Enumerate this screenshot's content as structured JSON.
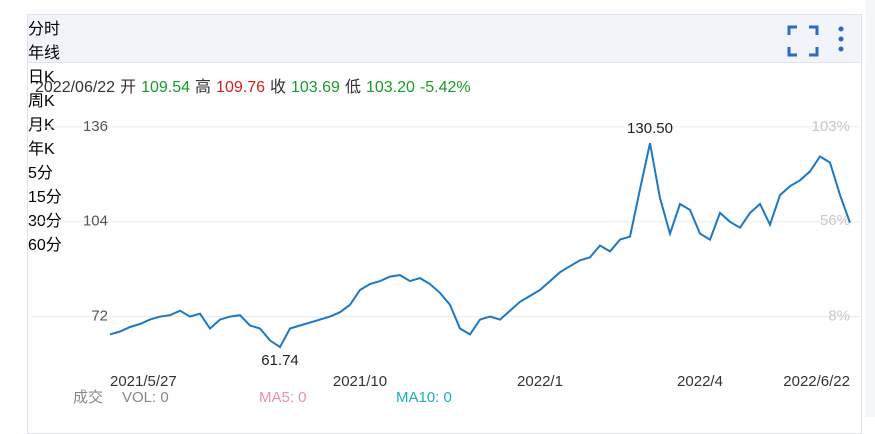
{
  "tabs": {
    "items": [
      "分时",
      "年线",
      "日K",
      "周K",
      "月K",
      "年K",
      "5分",
      "15分",
      "30分",
      "60分"
    ],
    "active": 1
  },
  "quote": {
    "date": "2022/06/22",
    "items": [
      {
        "label": "开",
        "value": "109.54",
        "color": "#1a9a2a"
      },
      {
        "label": "高",
        "value": "109.76",
        "color": "#d42020"
      },
      {
        "label": "收",
        "value": "103.69",
        "color": "#1a9a2a"
      },
      {
        "label": "低",
        "value": "103.20",
        "color": "#1a9a2a"
      }
    ],
    "change": "-5.42%",
    "change_color": "#1a9a2a"
  },
  "chart_data": {
    "type": "line",
    "categories": [
      "2021/5/27",
      null,
      null,
      null,
      null,
      null,
      null,
      null,
      null,
      null,
      null,
      null,
      null,
      null,
      null,
      null,
      null,
      null,
      null,
      null,
      null,
      null,
      null,
      null,
      null,
      "2021/10",
      null,
      null,
      null,
      null,
      null,
      null,
      null,
      null,
      null,
      null,
      null,
      null,
      null,
      null,
      null,
      null,
      null,
      "2022/1",
      null,
      null,
      null,
      null,
      null,
      null,
      null,
      null,
      null,
      null,
      null,
      null,
      null,
      null,
      null,
      "2022/4",
      null,
      null,
      null,
      null,
      null,
      null,
      null,
      null,
      null,
      null,
      null,
      null,
      null,
      null,
      "2022/6/22"
    ],
    "series": [
      {
        "name": "年线",
        "color": "#1d78c1",
        "values": [
          66,
          67,
          68.5,
          69.5,
          71,
          72,
          72.5,
          74,
          72,
          73,
          68,
          71,
          72,
          72.5,
          69,
          68,
          64,
          61.74,
          68,
          69,
          70,
          71,
          72,
          73.5,
          76,
          81,
          83,
          84,
          85.5,
          86,
          84,
          85,
          83,
          80,
          76,
          68,
          66,
          71,
          72,
          71,
          74,
          77,
          79,
          81,
          84,
          87,
          89,
          91,
          92,
          96,
          94,
          98,
          99,
          115,
          130.5,
          112,
          100,
          110,
          108,
          100,
          98,
          107,
          104,
          102,
          107,
          110,
          103,
          113,
          116,
          118,
          121,
          126,
          124,
          113,
          103.69
        ],
        "value_labels": [
          null,
          null,
          null,
          null,
          null,
          null,
          null,
          null,
          null,
          null,
          null,
          null,
          null,
          null,
          null,
          null,
          null,
          "61.74",
          null,
          null,
          null,
          null,
          null,
          null,
          null,
          null,
          null,
          null,
          null,
          null,
          null,
          null,
          null,
          null,
          null,
          null,
          null,
          null,
          null,
          null,
          null,
          null,
          null,
          null,
          null,
          null,
          null,
          null,
          null,
          null,
          null,
          null,
          null,
          null,
          "130.50",
          null,
          null,
          null,
          null,
          null,
          null,
          null,
          null,
          null,
          null,
          null,
          null,
          null,
          null,
          null,
          null,
          null,
          null,
          null,
          null
        ]
      }
    ],
    "ylim": [
      54,
      139
    ],
    "yticks": [
      136,
      104,
      72
    ],
    "y2lim": [
      -18.7,
      107.5
    ],
    "y2ticks": [
      {
        "value": 103,
        "label": "103%"
      },
      {
        "value": 56,
        "label": "56%"
      },
      {
        "value": 8,
        "label": "8%"
      }
    ],
    "grid": true
  },
  "volume": {
    "label": "成交",
    "vol": "VOL: 0",
    "ma5": "MA5: 0",
    "ma10": "MA10: 0"
  }
}
